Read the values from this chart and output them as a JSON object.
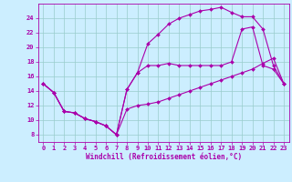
{
  "xlabel": "Windchill (Refroidissement éolien,°C)",
  "background_color": "#cceeff",
  "line_color": "#aa00aa",
  "grid_color": "#99cccc",
  "xlim": [
    -0.5,
    23.5
  ],
  "ylim": [
    7,
    26
  ],
  "yticks": [
    8,
    10,
    12,
    14,
    16,
    18,
    20,
    22,
    24
  ],
  "xticks": [
    0,
    1,
    2,
    3,
    4,
    5,
    6,
    7,
    8,
    9,
    10,
    11,
    12,
    13,
    14,
    15,
    16,
    17,
    18,
    19,
    20,
    21,
    22,
    23
  ],
  "lines": [
    {
      "x": [
        0,
        1,
        2,
        3,
        4,
        5,
        6,
        7,
        8,
        9,
        10,
        11,
        12,
        13,
        14,
        15,
        16,
        17,
        18,
        19,
        20,
        21,
        22,
        23
      ],
      "y": [
        15.0,
        13.8,
        11.2,
        11.0,
        10.2,
        9.8,
        9.2,
        8.0,
        11.5,
        12.0,
        12.2,
        12.5,
        13.0,
        13.5,
        14.0,
        14.5,
        15.0,
        15.5,
        16.0,
        16.5,
        17.0,
        17.8,
        18.5,
        15.0
      ]
    },
    {
      "x": [
        0,
        1,
        2,
        3,
        4,
        5,
        6,
        7,
        8,
        9,
        10,
        11,
        12,
        13,
        14,
        15,
        16,
        17,
        18,
        19,
        20,
        21,
        22,
        23
      ],
      "y": [
        15.0,
        13.8,
        11.2,
        11.0,
        10.2,
        9.8,
        9.2,
        8.0,
        14.2,
        16.5,
        17.5,
        17.5,
        17.8,
        17.5,
        17.5,
        17.5,
        17.5,
        17.5,
        18.0,
        22.5,
        22.8,
        17.5,
        17.0,
        15.0
      ]
    },
    {
      "x": [
        0,
        1,
        2,
        3,
        4,
        5,
        6,
        7,
        8,
        9,
        10,
        11,
        12,
        13,
        14,
        15,
        16,
        17,
        18,
        19,
        20,
        21,
        22,
        23
      ],
      "y": [
        15.0,
        13.8,
        11.2,
        11.0,
        10.2,
        9.8,
        9.2,
        8.0,
        14.2,
        16.5,
        20.5,
        21.8,
        23.2,
        24.0,
        24.5,
        25.0,
        25.2,
        25.5,
        24.8,
        24.2,
        24.2,
        22.5,
        17.5,
        15.0
      ]
    }
  ]
}
